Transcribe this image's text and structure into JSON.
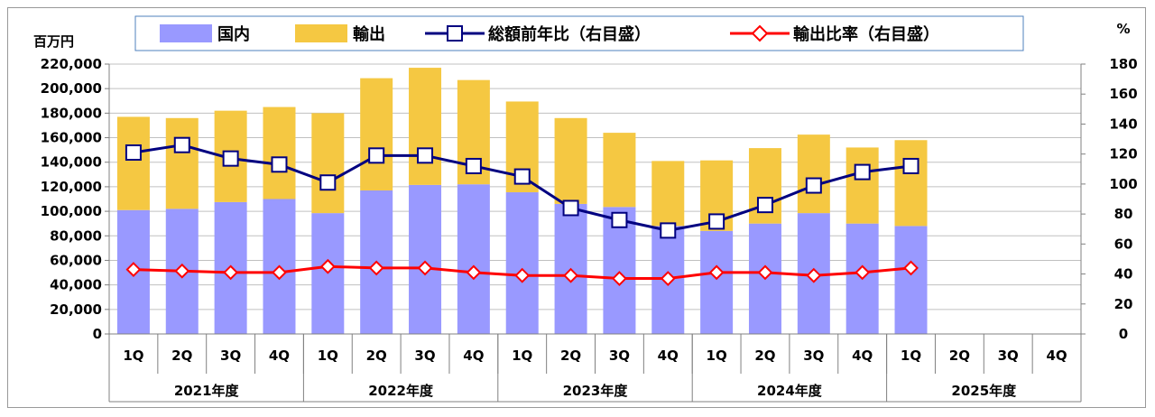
{
  "chart_data": {
    "type": "bar",
    "stacked": true,
    "units": {
      "left": "百万円",
      "right": "%"
    },
    "categories": [
      "1Q",
      "2Q",
      "3Q",
      "4Q",
      "1Q",
      "2Q",
      "3Q",
      "4Q",
      "1Q",
      "2Q",
      "3Q",
      "4Q",
      "1Q",
      "2Q",
      "3Q",
      "4Q",
      "1Q",
      "2Q",
      "3Q",
      "4Q"
    ],
    "fiscal_years": [
      {
        "label": "2021年度",
        "span": 4
      },
      {
        "label": "2022年度",
        "span": 4
      },
      {
        "label": "2023年度",
        "span": 4
      },
      {
        "label": "2024年度",
        "span": 4
      },
      {
        "label": "2025年度",
        "span": 4
      }
    ],
    "series": [
      {
        "name": "国内",
        "kind": "bar",
        "color": "#9999FF",
        "values": [
          101000,
          102000,
          107500,
          110000,
          98500,
          117000,
          121500,
          122000,
          115500,
          106000,
          103500,
          88000,
          84000,
          90000,
          98500,
          90000,
          88000,
          null,
          null,
          null
        ]
      },
      {
        "name": "輸出",
        "kind": "bar",
        "color": "#F5C842",
        "values": [
          76000,
          74000,
          74500,
          75000,
          81500,
          91500,
          95500,
          85000,
          74000,
          70000,
          60500,
          53000,
          57500,
          61500,
          64000,
          62000,
          70000,
          null,
          null,
          null
        ]
      },
      {
        "name": "総額前年比（右目盛）",
        "kind": "line",
        "axis": "right",
        "color": "#000080",
        "marker": "square",
        "values": [
          121,
          126,
          117,
          113,
          101,
          119,
          119,
          112,
          105,
          84,
          76,
          69,
          75,
          86,
          99,
          108,
          112,
          null,
          null,
          null
        ]
      },
      {
        "name": "輸出比率（右目盛）",
        "kind": "line",
        "axis": "right",
        "color": "#FF0000",
        "marker": "diamond",
        "values": [
          43,
          42,
          41,
          41,
          45,
          44,
          44,
          41,
          39,
          39,
          37,
          37,
          41,
          41,
          39,
          41,
          44,
          null,
          null,
          null
        ]
      }
    ],
    "left_axis": {
      "min": 0,
      "max": 220000,
      "step": 20000,
      "tick_labels": [
        "0",
        "20,000",
        "40,000",
        "60,000",
        "80,000",
        "100,000",
        "120,000",
        "140,000",
        "160,000",
        "180,000",
        "200,000",
        "220,000"
      ]
    },
    "right_axis": {
      "min": 0,
      "max": 180,
      "step": 20,
      "tick_labels": [
        "0",
        "20",
        "40",
        "60",
        "80",
        "100",
        "120",
        "140",
        "160",
        "180"
      ]
    },
    "grid": true,
    "legend_position": "top"
  }
}
